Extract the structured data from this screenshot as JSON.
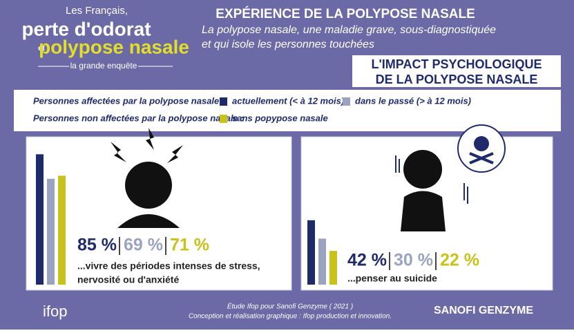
{
  "header": {
    "line1": "Les Français,",
    "line2": "perte d'odorat",
    "line3": "et",
    "line4": "polypose nasale",
    "line5": "la grande enquête",
    "title": "EXPÉRIENCE DE LA POLYPOSE NASALE",
    "subtitle": [
      "La polypose nasale, une maladie grave, sous-diagnostiquée",
      "et qui isole les personnes touchées"
    ],
    "section": [
      "L'IMPACT PSYCHOLOGIQUE",
      "DE LA POLYPOSE NASALE"
    ]
  },
  "legend": {
    "affected": "Personnes affectées par la polypose nasale :",
    "unaffected": "Personnes non affectées par la polypose nasale :",
    "items": [
      {
        "name": "actuellement (< à 12 mois)",
        "color": "#1f2a6b"
      },
      {
        "name": "dans le passé (> à 12 mois)",
        "color": "#9aa3c0"
      },
      {
        "name": "sans popypose nasale",
        "color": "#c8c21a"
      }
    ]
  },
  "chart_data": [
    {
      "type": "bar",
      "values": [
        85,
        69,
        71
      ],
      "value_labels": [
        "85 %",
        "69 %",
        "71 %"
      ],
      "caption": [
        "...vivre des périodes intenses de stress,",
        "nervosité ou d'anxiété"
      ]
    },
    {
      "type": "bar",
      "values": [
        42,
        30,
        22
      ],
      "value_labels": [
        "42 %",
        "30 %",
        "22 %"
      ],
      "caption": [
        "...penser au suicide"
      ]
    }
  ],
  "footer": {
    "logo": "ifop",
    "credit1": "Étude Ifop pour Sanofi Genzyme ( 2021 )",
    "credit2": "Conception et réalisation graphique : Ifop production et innovation.",
    "brand": "SANOFI GENZYME"
  }
}
